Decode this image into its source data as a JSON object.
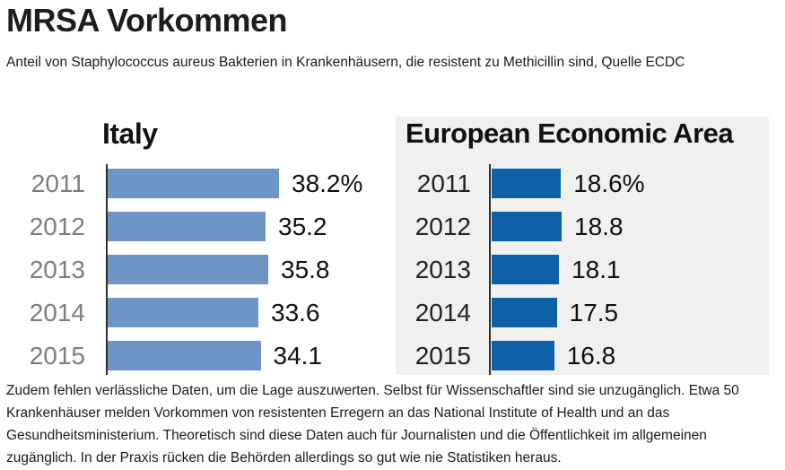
{
  "page": {
    "title": "MRSA Vorkommen",
    "subtitle": "Anteil von Staphylococcus aureus Bakterien in Krankenhäusern, die resistent zu Methicillin sind, Quelle ECDC",
    "body_text": "Zudem fehlen verlässliche Daten, um die Lage auszuwerten. Selbst für Wissenschaftler sind sie unzugänglich. Etwa 50 Krankenhäuser melden Vorkommen von resistenten Erregern an das National Institute of Health und an das Gesundheitsministerium. Theoretisch sind diese Daten auch für Journalisten und die Öffentlichkeit im allgemeinen zugänglich. In der Praxis rücken die Behörden allerdings so gut wie nie Statistiken heraus."
  },
  "chart_data": [
    {
      "type": "bar",
      "orientation": "horizontal",
      "title": "Italy",
      "categories": [
        "2011",
        "2012",
        "2013",
        "2014",
        "2015"
      ],
      "values": [
        38.2,
        35.2,
        35.8,
        33.6,
        34.1
      ],
      "value_labels": [
        "38.2%",
        "35.2",
        "35.8",
        "33.6",
        "34.1"
      ],
      "unit": "%",
      "xlim": [
        0,
        40
      ],
      "grid": false,
      "legend": false,
      "bar_color": "#6d95c5",
      "background": "#ffffff",
      "category_label_color": "#7b7d7f"
    },
    {
      "type": "bar",
      "orientation": "horizontal",
      "title": "European Economic Area",
      "categories": [
        "2011",
        "2012",
        "2013",
        "2014",
        "2015"
      ],
      "values": [
        18.6,
        18.8,
        18.1,
        17.5,
        16.8
      ],
      "value_labels": [
        "18.6%",
        "18.8",
        "18.1",
        "17.5",
        "16.8"
      ],
      "unit": "%",
      "xlim": [
        0,
        22
      ],
      "grid": false,
      "legend": false,
      "bar_color": "#0e61a7",
      "background": "#f0f0ef",
      "category_label_color": "#222222"
    }
  ]
}
